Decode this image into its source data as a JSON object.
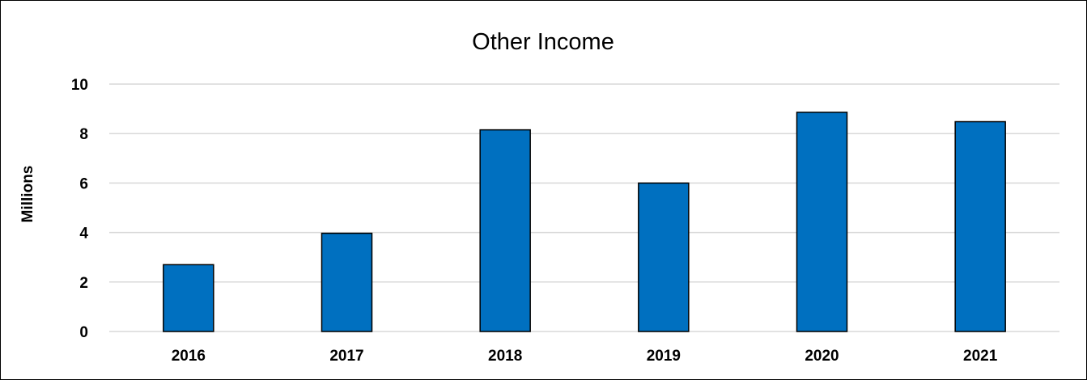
{
  "chart_data": {
    "type": "bar",
    "title": "Other Income",
    "xlabel": "",
    "ylabel": "Millions",
    "categories": [
      "2016",
      "2017",
      "2018",
      "2019",
      "2020",
      "2021"
    ],
    "series": [
      {
        "values": [
          2.7,
          3.97,
          8.15,
          6.0,
          8.86,
          8.48
        ]
      }
    ],
    "ylim": [
      0,
      10
    ],
    "yticks": [
      "0",
      "2",
      "4",
      "6",
      "8",
      "10"
    ],
    "grid": true,
    "legend": "none",
    "colors": {
      "bar_fill": "#0070C0",
      "bar_stroke": "#000000",
      "gridline": "#d9d9d9"
    }
  }
}
